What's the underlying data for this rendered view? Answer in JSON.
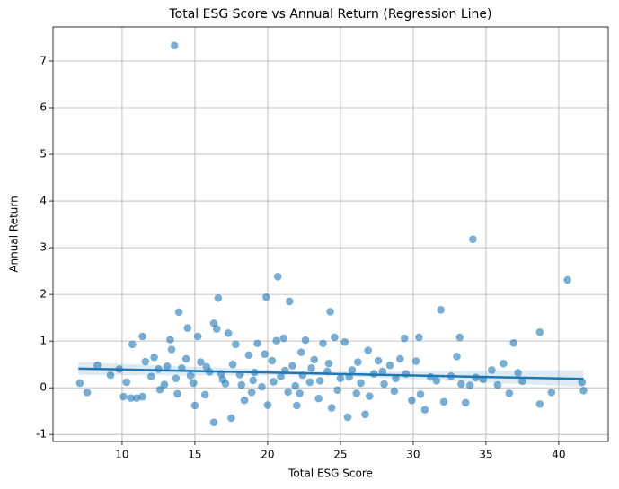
{
  "chart_data": {
    "type": "scatter",
    "title": "Total ESG Score vs Annual Return (Regression Line)",
    "xlabel": "Total ESG Score",
    "ylabel": "Annual Return",
    "xlim": [
      5.25,
      43.4
    ],
    "ylim": [
      -1.15,
      7.73
    ],
    "xticks": [
      10,
      15,
      20,
      25,
      30,
      35,
      40
    ],
    "yticks": [
      -1,
      0,
      1,
      2,
      3,
      4,
      5,
      6,
      7
    ],
    "grid": true,
    "point_color": "#1f77b4",
    "line_color": "#1f77b4",
    "x": [
      13.6,
      34.1,
      40.6,
      20.7,
      19.9,
      16.6,
      21.5,
      31.9,
      13.9,
      24.3,
      16.3,
      38.7,
      14.5,
      36.9,
      33.2,
      30.4,
      29.4,
      13.3,
      11.4,
      10.7,
      7.1,
      7.6,
      8.3,
      9.2,
      9.8,
      10.1,
      10.3,
      10.6,
      11,
      11.4,
      11.6,
      12,
      12.2,
      12.5,
      12.9,
      13.1,
      13.4,
      13.8,
      14.1,
      14.4,
      14.7,
      15,
      15.2,
      15.4,
      15.7,
      16,
      16.3,
      16.5,
      16.8,
      17.1,
      17.3,
      17.5,
      17.8,
      18.1,
      18.4,
      18.7,
      19,
      19.3,
      19.6,
      20,
      20.3,
      20.6,
      20.9,
      21.1,
      21.4,
      21.7,
      22,
      22.3,
      22.6,
      22.9,
      23.2,
      23.5,
      23.8,
      24.1,
      24.4,
      24.6,
      25,
      25.3,
      25.5,
      25.8,
      26.1,
      26.4,
      26.7,
      26.9,
      27.3,
      27.6,
      28,
      28.4,
      28.7,
      29.1,
      29.5,
      29.9,
      30.2,
      30.5,
      30.8,
      31.2,
      31.6,
      32.1,
      32.6,
      33,
      33.3,
      33.6,
      33.9,
      34.3,
      34.8,
      35.4,
      35.8,
      36.2,
      36.6,
      37.2,
      37.5,
      38.7,
      39.5,
      41.6,
      41.7,
      15.8,
      16.9,
      17.6,
      18.2,
      19.1,
      19.8,
      20.4,
      21.2,
      21.9,
      22.4,
      23,
      23.6,
      24.2,
      24.8,
      25.6,
      26.2,
      27,
      27.9,
      28.8,
      12.6,
      13.7,
      14.9,
      18.9,
      22.2
    ],
    "y": [
      7.33,
      3.18,
      2.31,
      2.38,
      1.94,
      1.92,
      1.85,
      1.67,
      1.62,
      1.63,
      1.38,
      1.19,
      1.28,
      0.96,
      1.08,
      1.08,
      1.06,
      1.03,
      1.1,
      0.93,
      0.1,
      -0.1,
      0.48,
      0.27,
      0.4,
      -0.19,
      0.12,
      -0.22,
      -0.22,
      -0.19,
      0.56,
      0.24,
      0.65,
      0.4,
      0.07,
      0.46,
      0.82,
      -0.13,
      0.42,
      0.62,
      0.26,
      -0.38,
      1.1,
      0.55,
      -0.15,
      0.34,
      -0.74,
      1.26,
      0.3,
      0.09,
      1.17,
      -0.65,
      0.93,
      0.28,
      -0.27,
      0.7,
      0.16,
      0.95,
      0.02,
      -0.37,
      0.58,
      1.01,
      0.24,
      1.06,
      -0.09,
      0.47,
      -0.38,
      0.76,
      1.02,
      0.12,
      0.6,
      -0.23,
      0.95,
      0.35,
      -0.43,
      1.08,
      0.2,
      0.98,
      -0.63,
      0.38,
      -0.12,
      0.1,
      -0.57,
      0.8,
      0.3,
      0.58,
      0.08,
      0.48,
      -0.07,
      0.62,
      0.3,
      -0.27,
      0.57,
      -0.14,
      -0.47,
      0.23,
      0.15,
      -0.3,
      0.25,
      0.67,
      0.08,
      -0.32,
      0.05,
      0.22,
      0.18,
      0.38,
      0.06,
      0.52,
      -0.12,
      0.32,
      0.14,
      -0.35,
      -0.1,
      0.12,
      -0.06,
      0.45,
      0.18,
      0.5,
      0.06,
      0.33,
      0.72,
      0.13,
      0.37,
      0.04,
      0.27,
      0.42,
      0.15,
      0.52,
      -0.05,
      0.23,
      0.55,
      -0.18,
      0.35,
      0.2,
      -0.04,
      0.2,
      0.1,
      -0.1,
      -0.12
    ],
    "regression": {
      "x": [
        7,
        24,
        41.7
      ],
      "y": [
        0.41,
        0.3,
        0.19
      ],
      "band_lower": [
        0.27,
        0.26,
        0.02
      ],
      "band_upper": [
        0.55,
        0.34,
        0.38
      ]
    }
  }
}
